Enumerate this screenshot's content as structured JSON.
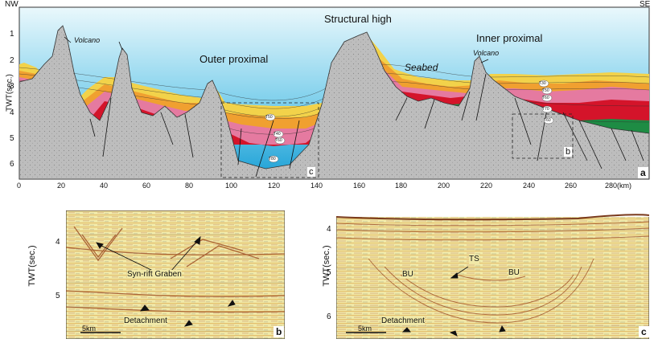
{
  "top_panel": {
    "corner_left": "NW",
    "corner_right": "SE",
    "panel_letter": "a",
    "y_axis_label": "TWT(sec.)",
    "y_ticks": [
      "1",
      "2",
      "3",
      "4",
      "5",
      "6"
    ],
    "x_ticks": [
      "0",
      "20",
      "40",
      "60",
      "80",
      "100",
      "120",
      "140",
      "160",
      "180",
      "200",
      "220",
      "240",
      "260",
      "280(km)"
    ],
    "labels": {
      "structural_high": "Structural high",
      "outer_proximal": "Outer proximal",
      "inner_proximal": "Inner proximal",
      "seabed": "Seabed",
      "volcano_left": "Volcano",
      "volcano_right": "Volcano",
      "box_c": "c",
      "box_b": "b"
    },
    "horizon_tags": [
      "T50",
      "T40",
      "T60",
      "T70",
      "T80",
      "T30",
      "T50",
      "T60",
      "T70",
      "T80",
      "T60"
    ]
  },
  "panel_b": {
    "panel_letter": "b",
    "y_axis_label": "TWT(sec.)",
    "y_ticks": [
      "4",
      "5"
    ],
    "annotation_graben": "Syn-rift Graben",
    "annotation_detachment": "Detachment",
    "scale": "5km"
  },
  "panel_c": {
    "panel_letter": "c",
    "y_axis_label": "TWT(sec.)",
    "y_ticks": [
      "4",
      "5",
      "6"
    ],
    "annotation_ts": "TS",
    "annotation_bu_left": "BU",
    "annotation_bu_right": "BU",
    "annotation_detachment": "Detachment",
    "scale": "5km"
  },
  "colors": {
    "water_top": "#e8f7fb",
    "water_bottom": "#2aa8d8",
    "basement": "#b9b9b9",
    "red_unit": "#d4142a",
    "pink_unit": "#e57aa0",
    "green_unit": "#1e8c44",
    "yellow_unit": "#f2d24a",
    "orange_unit": "#f0a030"
  }
}
